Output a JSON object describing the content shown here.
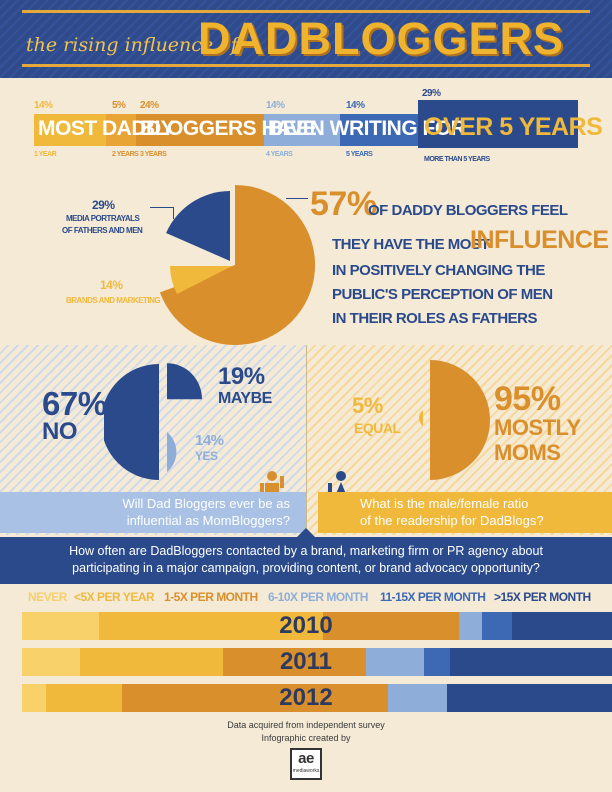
{
  "colors": {
    "navy": "#2b4a8c",
    "gold": "#d98f2c",
    "yellow": "#f0b93c",
    "light_blue": "#8eaed9",
    "mid_blue": "#3c68b4",
    "cream": "#f4ead6"
  },
  "header": {
    "prefix": "the rising influence of",
    "title": "DADBLOGGERS"
  },
  "years_banner": {
    "segments": [
      {
        "pct": "14%",
        "text": "MOST DADDY",
        "label": "1 YEAR"
      },
      {
        "pct": "5%",
        "text": "",
        "label": "2 YEARS"
      },
      {
        "pct": "24%",
        "text": "BLOGGERS HAVE",
        "label": "3 YEARS"
      },
      {
        "pct": "14%",
        "text": "BEEN WRITING FOR",
        "label": "4 YEARS"
      },
      {
        "pct": "14%",
        "text": "",
        "label": "5 YEARS"
      },
      {
        "pct": "29%",
        "text": "OVER 5 YEARS",
        "label": "MORE THAN 5 YEARS"
      }
    ]
  },
  "influence": {
    "media_pct": "29%",
    "media_label_1": "MEDIA PORTRAYALS",
    "media_label_2": "OF FATHERS AND MEN",
    "brands_pct": "14%",
    "brands_label": "BRANDS AND MARKETING",
    "main_pct": "57%",
    "line1": "OF DADDY BLOGGERS FEEL",
    "line2a": "THEY HAVE THE MOST",
    "line2b": "INFLUENCE",
    "line3": "IN POSITIVELY CHANGING THE",
    "line4": "PUBLIC'S PERCEPTION OF MEN",
    "line5": "IN THEIR ROLES AS FATHERS",
    "values": [
      57,
      29,
      14
    ]
  },
  "poll_left": {
    "no_pct": "67%",
    "no_label": "NO",
    "maybe_pct": "19%",
    "maybe_label": "MAYBE",
    "yes_pct": "14%",
    "yes_label": "YES",
    "question_1": "Will Dad Bloggers ever be as",
    "question_2": "influential as MomBloggers?"
  },
  "poll_right": {
    "equal_pct": "5%",
    "equal_label": "EQUAL",
    "moms_pct": "95%",
    "moms_label_1": "MOSTLY",
    "moms_label_2": "MOMS",
    "question_1": "What is the male/female ratio",
    "question_2": "of the readership for DadBlogs?"
  },
  "contact": {
    "question_1": "How often are DadBloggers contacted by a brand, marketing firm or PR agency about",
    "question_2": "participating in a major campaign, providing content, or brand advocacy opportunity?",
    "legend": [
      "NEVER",
      "<5X PER YEAR",
      "1-5X PER MONTH",
      "6-10X PER MONTH",
      "11-15X PER MONTH",
      ">15X PER MONTH"
    ]
  },
  "chart_data": {
    "type": "bar",
    "orientation": "horizontal-stacked-100",
    "categories": [
      "2010",
      "2011",
      "2012"
    ],
    "series": [
      {
        "name": "NEVER",
        "values": [
          13,
          9,
          4
        ]
      },
      {
        "name": "<5X PER YEAR",
        "values": [
          38,
          22,
          13
        ]
      },
      {
        "name": "1-5X PER MONTH",
        "values": [
          23,
          22,
          45
        ]
      },
      {
        "name": "6-10X PER MONTH",
        "values": [
          4,
          9,
          10
        ]
      },
      {
        "name": "11-15X PER MONTH",
        "values": [
          5,
          4,
          0
        ]
      },
      {
        "name": ">15X PER MONTH",
        "values": [
          17,
          25,
          28
        ]
      }
    ]
  },
  "footer": {
    "line1": "Data acquired from independent survey",
    "line2": "Infographic created by",
    "logo_text": "ae",
    "logo_sub": "mediaworks"
  }
}
